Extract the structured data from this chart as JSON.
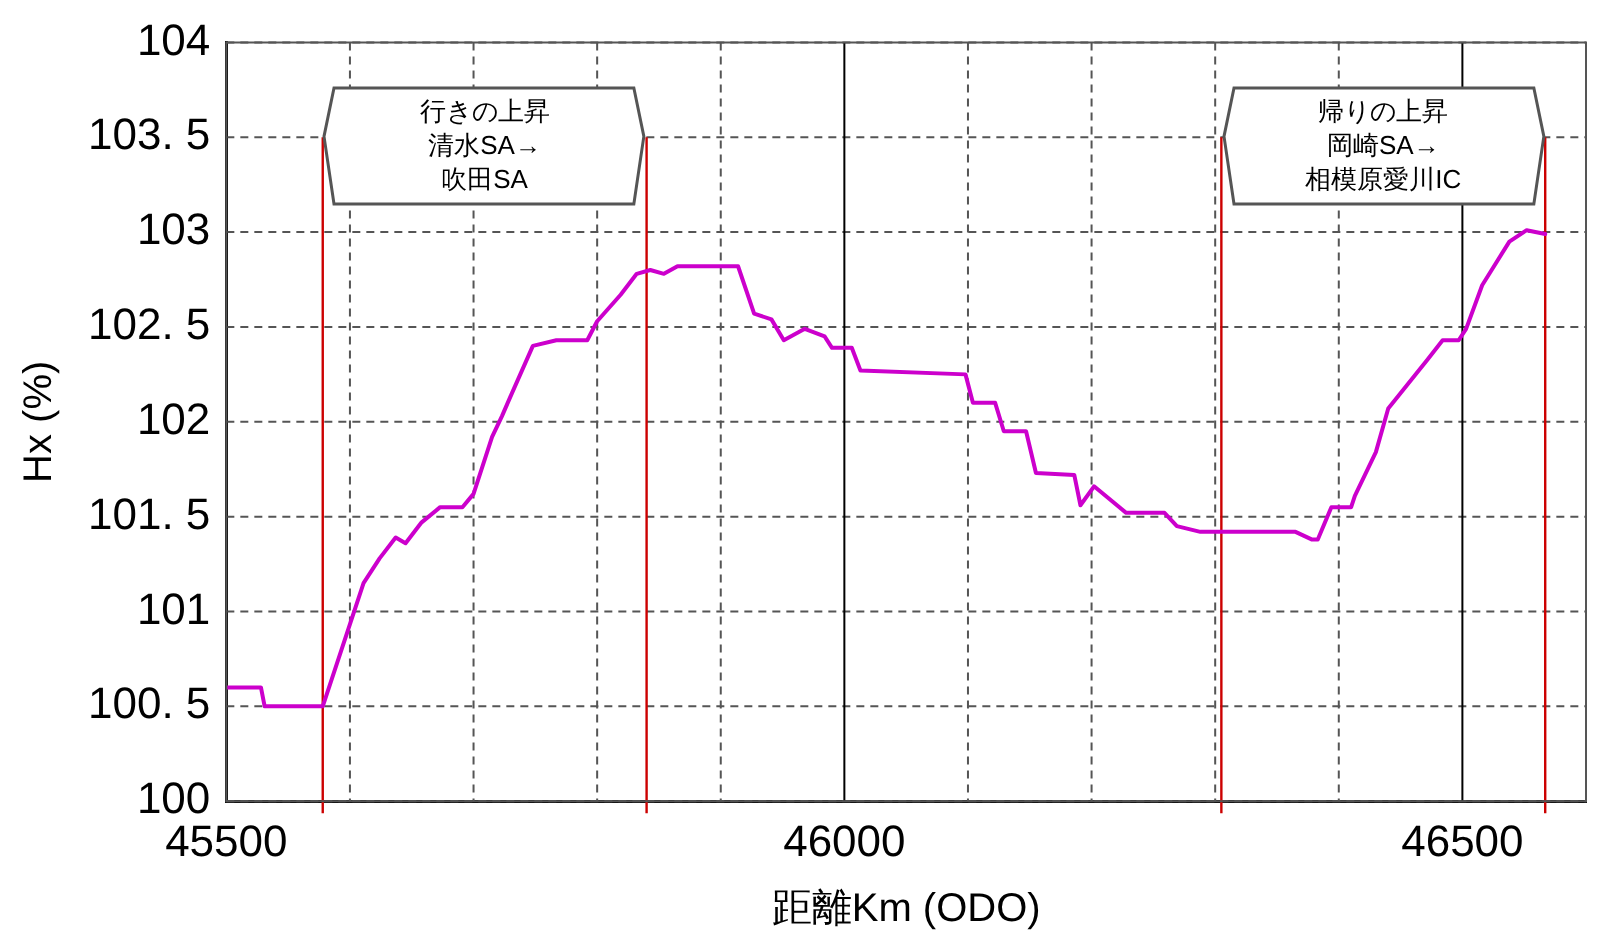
{
  "chart_data": {
    "type": "line",
    "xlabel": "距離Km (ODO)",
    "ylabel": "Hx (%)",
    "xlim": [
      45500,
      46600
    ],
    "ylim": [
      100,
      104
    ],
    "xticks": [
      45500,
      {
        "value": 45600,
        "label": null
      },
      {
        "value": 45700,
        "label": null
      },
      {
        "value": 45800,
        "label": null
      },
      {
        "value": 45900,
        "label": null
      },
      46000,
      {
        "value": 46100,
        "label": null
      },
      {
        "value": 46200,
        "label": null
      },
      {
        "value": 46300,
        "label": null
      },
      {
        "value": 46400,
        "label": null
      },
      46500
    ],
    "yticks": [
      100,
      {
        "value": 100.5,
        "label": "100. 5"
      },
      101,
      {
        "value": 101.5,
        "label": "101. 5"
      },
      102,
      {
        "value": 102.5,
        "label": "102. 5"
      },
      103,
      {
        "value": 103.5,
        "label": "103. 5"
      },
      104
    ],
    "grid": true,
    "legend": false,
    "marker": "none",
    "line_style": "solid",
    "series": [
      {
        "color": "#cc00cc",
        "x": [
          45500,
          45528,
          45531,
          45578,
          45611,
          45624,
          45637,
          45645,
          45658,
          45673,
          45691,
          45700,
          45715,
          45723,
          45731,
          45748,
          45767,
          45792,
          45800,
          45819,
          45832,
          45843,
          45854,
          45865,
          45914,
          45927,
          45941,
          45951,
          45968,
          45984,
          45990,
          46006,
          46013,
          46098,
          46104,
          46122,
          46129,
          46147,
          46155,
          46186,
          46191,
          46202,
          46228,
          46259,
          46269,
          46288,
          46365,
          46378,
          46383,
          46394,
          46410,
          46413,
          46430,
          46440,
          46472,
          46484,
          46497,
          46503,
          46516,
          46538,
          46552,
          46567
        ],
        "values": [
          100.6,
          100.6,
          100.5,
          100.5,
          101.15,
          101.28,
          101.39,
          101.36,
          101.47,
          101.55,
          101.55,
          101.62,
          101.92,
          102.03,
          102.15,
          102.4,
          102.43,
          102.43,
          102.53,
          102.67,
          102.78,
          102.8,
          102.78,
          102.82,
          102.82,
          102.57,
          102.54,
          102.43,
          102.49,
          102.45,
          102.39,
          102.39,
          102.27,
          102.25,
          102.1,
          102.1,
          101.95,
          101.95,
          101.73,
          101.72,
          101.56,
          101.66,
          101.52,
          101.52,
          101.45,
          101.42,
          101.42,
          101.38,
          101.38,
          101.55,
          101.55,
          101.61,
          101.84,
          102.07,
          102.33,
          102.43,
          102.43,
          102.49,
          102.72,
          102.95,
          103.01,
          102.99
        ]
      }
    ],
    "ref_lines": [
      {
        "axis": "x",
        "value": 45578,
        "color": "#cc0000"
      },
      {
        "axis": "x",
        "value": 45840,
        "color": "#cc0000"
      },
      {
        "axis": "x",
        "value": 46305,
        "color": "#cc0000"
      },
      {
        "axis": "x",
        "value": 46567,
        "color": "#cc0000"
      }
    ],
    "annotations": [
      "行きの上昇",
      "清水SA→吹田SA",
      "帰りの上昇",
      "岡崎SA→相模原愛川IC"
    ]
  }
}
